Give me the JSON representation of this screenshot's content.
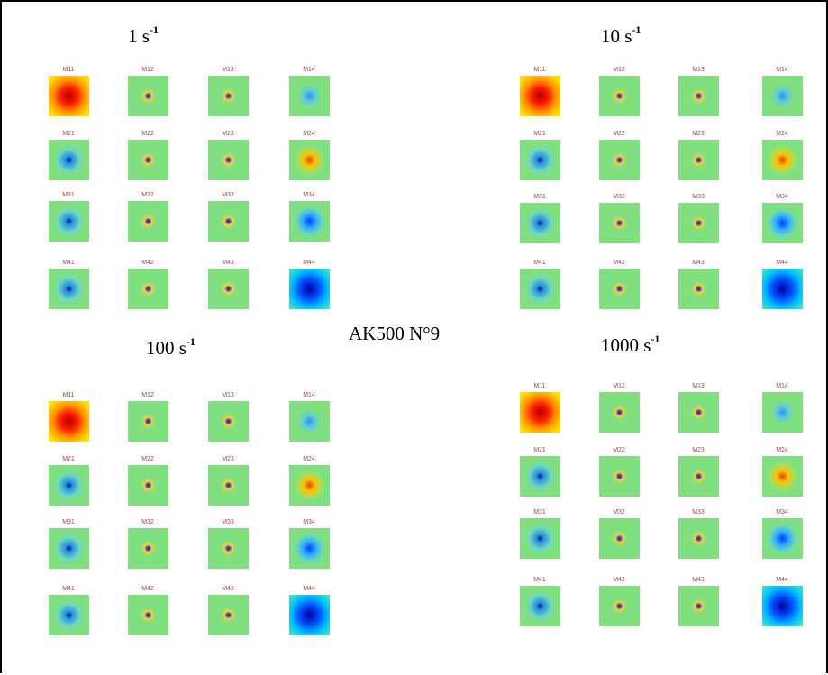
{
  "center_label": "AK500 N°9",
  "panels": [
    {
      "title": "1 s",
      "title_sup": "-1",
      "labels": [
        [
          "M11",
          "M12",
          "M13",
          "M14"
        ],
        [
          "M21",
          "M22",
          "M23",
          "M24"
        ],
        [
          "M31",
          "M32",
          "M33",
          "M34"
        ],
        [
          "M41",
          "M42",
          "M43",
          "M44"
        ]
      ]
    },
    {
      "title": "10 s",
      "title_sup": "-1",
      "labels": [
        [
          "M11",
          "M12",
          "M13",
          "M14"
        ],
        [
          "M21",
          "M22",
          "M23",
          "M24"
        ],
        [
          "M31",
          "M32",
          "M33",
          "M34"
        ],
        [
          "M41",
          "M42",
          "M43",
          "M44"
        ]
      ]
    },
    {
      "title": "100 s",
      "title_sup": "-1",
      "labels": [
        [
          "M11",
          "M12",
          "M13",
          "M14"
        ],
        [
          "M21",
          "M22",
          "M23",
          "M24"
        ],
        [
          "M31",
          "M32",
          "M33",
          "M34"
        ],
        [
          "M41",
          "M42",
          "M43",
          "M44"
        ]
      ]
    },
    {
      "title": "1000 s",
      "title_sup": "-1",
      "labels": [
        [
          "M11",
          "M12",
          "M13",
          "M14"
        ],
        [
          "M21",
          "M22",
          "M23",
          "M24"
        ],
        [
          "M31",
          "M32",
          "M33",
          "M34"
        ],
        [
          "M41",
          "M42",
          "M43",
          "M44"
        ]
      ]
    }
  ]
}
